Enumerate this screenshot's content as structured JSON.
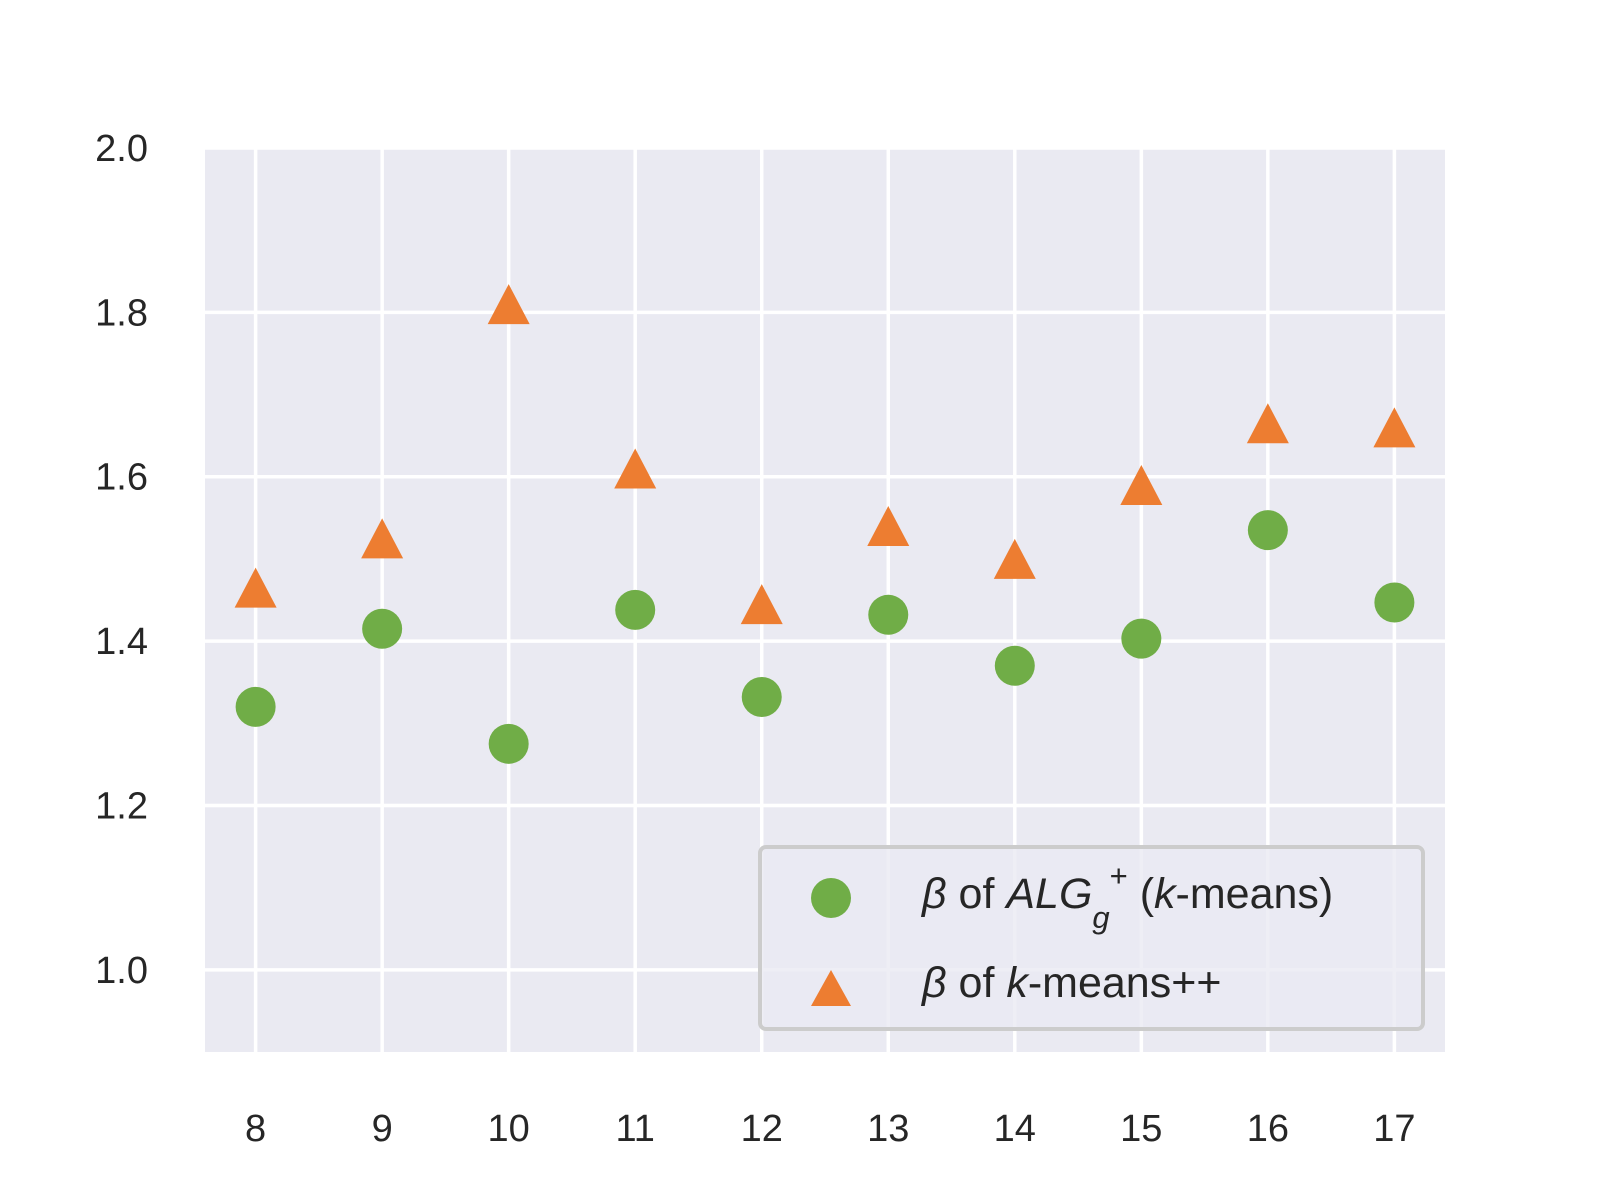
{
  "chart_data": {
    "type": "scatter",
    "title": "",
    "xlabel": "",
    "ylabel": "",
    "x": [
      8,
      9,
      10,
      11,
      12,
      13,
      14,
      15,
      16,
      17
    ],
    "xlim": [
      7.6,
      17.4
    ],
    "ylim": [
      0.9,
      2.0
    ],
    "yticks": [
      "1.0",
      "1.2",
      "1.4",
      "1.6",
      "1.8",
      "2.0"
    ],
    "xticks": [
      "8",
      "9",
      "10",
      "11",
      "12",
      "13",
      "14",
      "15",
      "16",
      "17"
    ],
    "grid": true,
    "legend_position": "lower-right",
    "series": [
      {
        "name": "β of ALGg+ (k-means)",
        "marker": "circle",
        "color": "#70ad47",
        "values": [
          1.32,
          1.415,
          1.275,
          1.438,
          1.332,
          1.432,
          1.37,
          1.403,
          1.535,
          1.447
        ],
        "legend_parts": [
          {
            "text": "β",
            "italic": true
          },
          {
            "text": " of ",
            "italic": false
          },
          {
            "text": "ALG",
            "italic": true
          },
          {
            "text": "g",
            "italic": true,
            "sub": true
          },
          {
            "text": "+",
            "italic": false,
            "sup": true
          },
          {
            "text": " (",
            "italic": false
          },
          {
            "text": "k",
            "italic": true
          },
          {
            "text": "-means)",
            "italic": false
          }
        ]
      },
      {
        "name": "β of k-means++",
        "marker": "triangle",
        "color": "#ed7d31",
        "values": [
          1.465,
          1.525,
          1.81,
          1.61,
          1.445,
          1.54,
          1.5,
          1.59,
          1.665,
          1.66
        ],
        "legend_parts": [
          {
            "text": "β",
            "italic": true
          },
          {
            "text": " of ",
            "italic": false
          },
          {
            "text": "k",
            "italic": true
          },
          {
            "text": "-means++",
            "italic": false
          }
        ]
      }
    ],
    "colors": {
      "plot_background": "#eaeaf2",
      "grid": "#ffffff",
      "legend_border": "#cccccc"
    }
  }
}
